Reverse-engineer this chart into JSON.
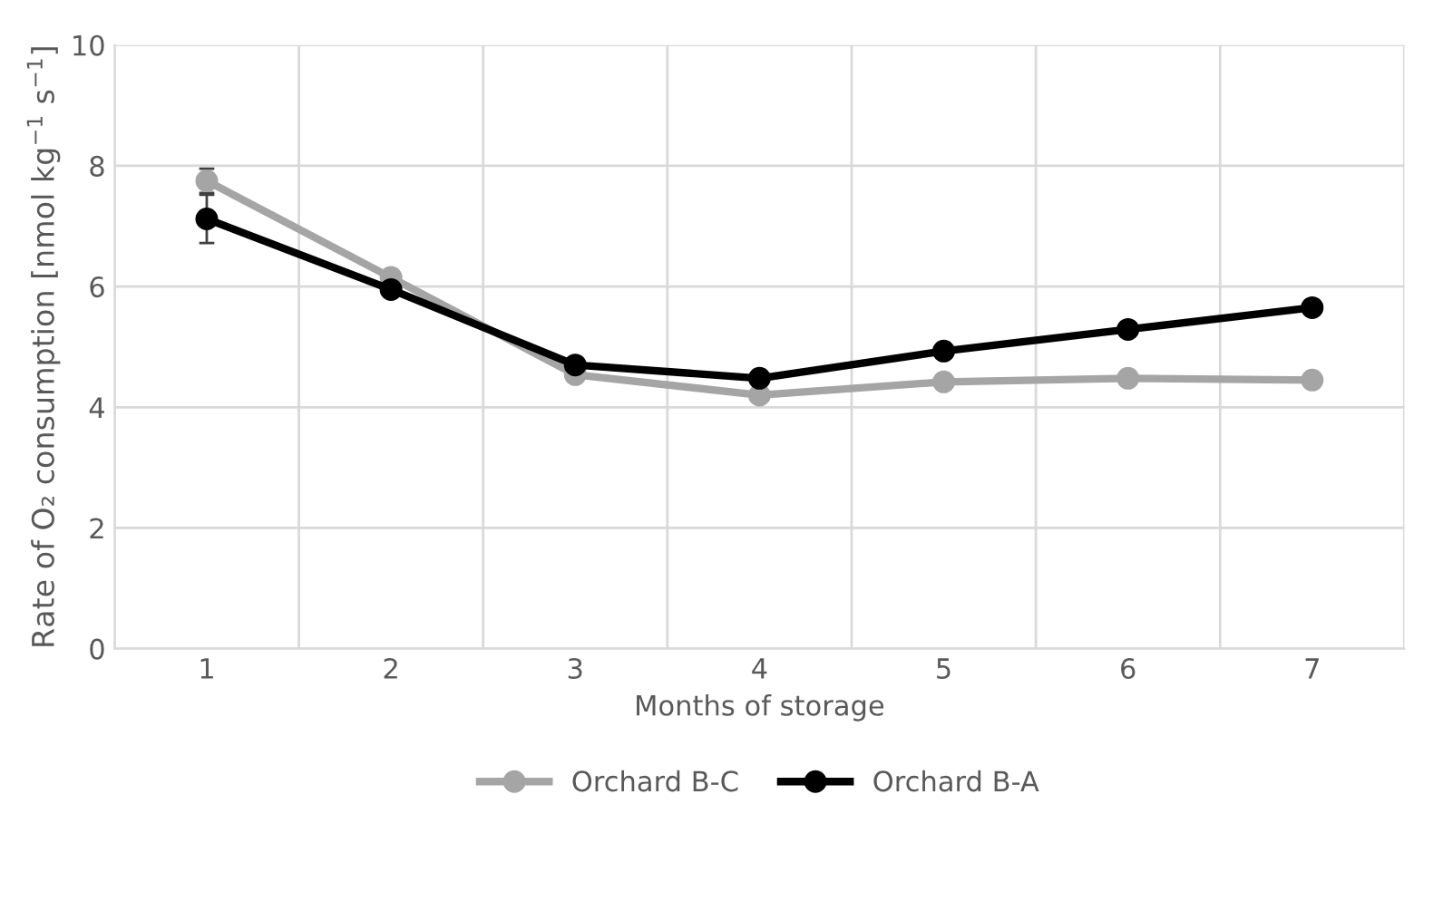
{
  "chart_data": {
    "type": "line",
    "xlabel": "Months of storage",
    "ylabel": "Rate of O₂ consumption [nmol kg$^{−1}$ s$^{−1}$]",
    "categories": [
      "1",
      "2",
      "3",
      "4",
      "5",
      "6",
      "7"
    ],
    "series": [
      {
        "name": "Orchard B-C",
        "color": "#a5a5a5",
        "values": [
          7.75,
          6.15,
          4.54,
          4.2,
          4.42,
          4.48,
          4.45
        ],
        "errors": [
          0.2,
          null,
          null,
          null,
          null,
          null,
          null
        ]
      },
      {
        "name": "Orchard B-A",
        "color": "#000000",
        "values": [
          7.12,
          5.95,
          4.7,
          4.48,
          4.93,
          5.29,
          5.65
        ],
        "errors": [
          0.4,
          null,
          null,
          null,
          null,
          null,
          null
        ]
      }
    ],
    "ylim": [
      0,
      10
    ],
    "yticks": [
      0,
      2,
      4,
      6,
      8,
      10
    ],
    "grid": true,
    "legend": "bottom",
    "marker": "circle",
    "line_style": "solid"
  }
}
